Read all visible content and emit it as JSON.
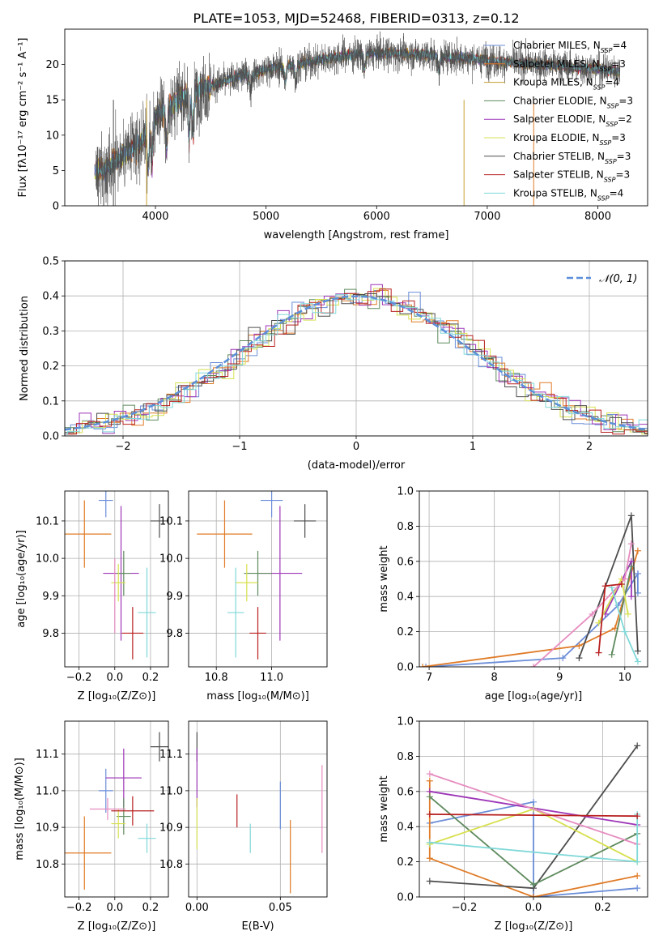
{
  "figure_title": "PLATE=1053, MJD=52468, FIBERID=0313, z=0.12",
  "colors": {
    "Chabrier MILES": "#6a8dd8",
    "Salpeter MILES": "#e07b27",
    "Kroupa MILES": "#c8a033",
    "Chabrier ELODIE": "#5e8a5e",
    "Salpeter ELODIE": "#9e36b8",
    "Kroupa ELODIE": "#d8e050",
    "Chabrier STELIB": "#4d4d4d",
    "Salpeter STELIB": "#b81f1f",
    "Kroupa STELIB": "#80d8d8",
    "extra_pink": "#e68cc0"
  },
  "chart_data": [
    {
      "id": "spectrum",
      "type": "line",
      "title": "PLATE=1053, MJD=52468, FIBERID=0313, z=0.12",
      "xlabel": "wavelength [Angstrom, rest frame]",
      "ylabel": "Flux [fλ10⁻¹⁷ erg cm⁻² s⁻¹ A⁻¹]",
      "xlim": [
        3180,
        8450
      ],
      "ylim": [
        0,
        25
      ],
      "xticks": [
        4000,
        5000,
        6000,
        7000,
        8000
      ],
      "yticks": [
        0,
        5,
        10,
        15,
        20
      ],
      "legend_position": "upper-right",
      "continuum": {
        "x": [
          3450,
          3550,
          3650,
          3750,
          3850,
          3950,
          4050,
          4200,
          4400,
          4600,
          4800,
          5000,
          5200,
          5400,
          5600,
          5800,
          6000,
          6200,
          6400,
          6600,
          6800,
          7000,
          7200,
          7400,
          7600,
          7800,
          8000,
          8200
        ],
        "y": [
          5.0,
          5.3,
          6.5,
          7.5,
          8.5,
          11.5,
          13.5,
          15.0,
          16.5,
          17.5,
          18.5,
          19.3,
          19.8,
          20.4,
          21.0,
          21.4,
          21.6,
          21.6,
          21.4,
          21.1,
          20.9,
          20.6,
          20.3,
          20.1,
          19.9,
          19.6,
          19.4,
          19.1
        ]
      },
      "series": [
        {
          "name": "Chabrier MILES",
          "nssp": "4"
        },
        {
          "name": "Salpeter MILES",
          "nssp": "3"
        },
        {
          "name": "Kroupa MILES",
          "nssp": "4"
        },
        {
          "name": "Chabrier ELODIE",
          "nssp": "3"
        },
        {
          "name": "Salpeter ELODIE",
          "nssp": "2"
        },
        {
          "name": "Kroupa ELODIE",
          "nssp": "3"
        },
        {
          "name": "Chabrier STELIB",
          "nssp": "3"
        },
        {
          "name": "Salpeter STELIB",
          "nssp": "3"
        },
        {
          "name": "Kroupa STELIB",
          "nssp": "4"
        }
      ]
    },
    {
      "id": "residual-histogram",
      "type": "line",
      "xlabel": "(data-model)/error",
      "ylabel": "Normed distribution",
      "xlim": [
        -2.5,
        2.5
      ],
      "ylim": [
        0,
        0.5
      ],
      "xticks": [
        -2,
        -1,
        0,
        1,
        2
      ],
      "yticks": [
        0.0,
        0.1,
        0.2,
        0.3,
        0.4,
        0.5
      ],
      "grid": true,
      "legend": "𝒩(0, 1)",
      "legend_position": "upper-right",
      "bin_width": 0.1,
      "series_note": "step histograms, one per model, colors as in the spectrum legend; dashed curve is a unit normal"
    },
    {
      "id": "age-vs-Z",
      "type": "scatter",
      "xlabel": "Z [log₁₀(Z/Z⊙)]",
      "ylabel": "age  [log₁₀(age/yr)]",
      "xlim": [
        -0.28,
        0.3
      ],
      "ylim": [
        9.71,
        10.18
      ],
      "xticks": [
        -0.2,
        0.0,
        0.2
      ],
      "yticks": [
        9.8,
        9.9,
        10.0,
        10.1
      ],
      "grid": true,
      "points": [
        {
          "model": "Chabrier MILES",
          "x": -0.05,
          "xerr": 0.04,
          "y": 10.155,
          "yerr": 0.045
        },
        {
          "model": "Salpeter MILES",
          "x": -0.17,
          "xerr": 0.15,
          "y": 10.065,
          "yerr": 0.09
        },
        {
          "model": "Chabrier STELIB",
          "x": 0.25,
          "xerr": 0.05,
          "y": 10.1,
          "yerr": 0.045
        },
        {
          "model": "Salpeter ELODIE",
          "x": 0.035,
          "xerr": 0.1,
          "y": 9.96,
          "yerr": 0.18
        },
        {
          "model": "Chabrier ELODIE",
          "x": 0.05,
          "xerr": 0.04,
          "y": 9.96,
          "yerr": 0.06
        },
        {
          "model": "Kroupa ELODIE",
          "x": 0.02,
          "xerr": 0.04,
          "y": 9.935,
          "yerr": 0.05
        },
        {
          "model": "extra_pink",
          "x": 0.0,
          "xerr": 0.005,
          "y": 9.9,
          "yerr": 0.1
        },
        {
          "model": "Kroupa STELIB",
          "x": 0.18,
          "xerr": 0.05,
          "y": 9.855,
          "yerr": 0.12
        },
        {
          "model": "Salpeter STELIB",
          "x": 0.1,
          "xerr": 0.06,
          "y": 9.8,
          "yerr": 0.07
        }
      ]
    },
    {
      "id": "age-vs-mass",
      "type": "scatter",
      "xlabel": "mass [log₁₀(M/M⊙)]",
      "ylabel": "",
      "xlim": [
        10.7,
        11.2
      ],
      "ylim": [
        9.71,
        10.18
      ],
      "xticks": [
        10.8,
        11.0
      ],
      "yticks": [
        9.8,
        9.9,
        10.0,
        10.1
      ],
      "grid": true,
      "points": [
        {
          "model": "Chabrier MILES",
          "x": 11.0,
          "xerr": 0.04,
          "y": 10.155,
          "yerr": 0.045
        },
        {
          "model": "Salpeter MILES",
          "x": 10.83,
          "xerr": 0.1,
          "y": 10.065,
          "yerr": 0.09
        },
        {
          "model": "Chabrier STELIB",
          "x": 11.12,
          "xerr": 0.04,
          "y": 10.1,
          "yerr": 0.045
        },
        {
          "model": "Salpeter ELODIE",
          "x": 11.03,
          "xerr": 0.08,
          "y": 9.96,
          "yerr": 0.18
        },
        {
          "model": "Chabrier ELODIE",
          "x": 10.95,
          "xerr": 0.05,
          "y": 9.96,
          "yerr": 0.06
        },
        {
          "model": "Kroupa ELODIE",
          "x": 10.91,
          "xerr": 0.04,
          "y": 9.935,
          "yerr": 0.05
        },
        {
          "model": "Kroupa STELIB",
          "x": 10.87,
          "xerr": 0.03,
          "y": 9.855,
          "yerr": 0.12
        },
        {
          "model": "Salpeter STELIB",
          "x": 10.95,
          "xerr": 0.03,
          "y": 9.8,
          "yerr": 0.07
        }
      ]
    },
    {
      "id": "mass-weight-vs-age",
      "type": "line",
      "xlabel": "age  [log₁₀(age/yr)]",
      "ylabel": "mass weight",
      "xlim": [
        6.85,
        10.35
      ],
      "ylim": [
        0.0,
        1.0
      ],
      "xticks": [
        7,
        8,
        9,
        10
      ],
      "yticks": [
        0.0,
        0.2,
        0.4,
        0.6,
        0.8,
        1.0
      ],
      "grid": true,
      "series": [
        {
          "model": "Chabrier MILES",
          "x": [
            6.95,
            9.05,
            9.9,
            10.2,
            10.2
          ],
          "y": [
            0.0,
            0.05,
            0.35,
            0.53,
            0.42
          ]
        },
        {
          "model": "Salpeter MILES",
          "x": [
            6.9,
            9.3,
            9.85,
            10.2
          ],
          "y": [
            0.0,
            0.12,
            0.22,
            0.66
          ]
        },
        {
          "model": "Chabrier STELIB",
          "x": [
            9.3,
            10.1,
            10.2
          ],
          "y": [
            0.05,
            0.86,
            0.09
          ]
        },
        {
          "model": "Salpeter ELODIE",
          "x": [
            9.7,
            10.1,
            10.1
          ],
          "y": [
            0.3,
            0.6,
            0.4
          ]
        },
        {
          "model": "Chabrier ELODIE",
          "x": [
            9.8,
            10.1
          ],
          "y": [
            0.07,
            0.57
          ]
        },
        {
          "model": "Kroupa ELODIE",
          "x": [
            9.6,
            9.95,
            10.05
          ],
          "y": [
            0.25,
            0.5,
            0.3
          ]
        },
        {
          "model": "extra_pink",
          "x": [
            8.6,
            9.5,
            10.0,
            10.1
          ],
          "y": [
            0.0,
            0.3,
            0.5,
            0.7
          ]
        },
        {
          "model": "Kroupa STELIB",
          "x": [
            9.8,
            10.0,
            10.2
          ],
          "y": [
            0.45,
            0.2,
            0.03
          ]
        },
        {
          "model": "Salpeter STELIB",
          "x": [
            9.6,
            9.7,
            9.95
          ],
          "y": [
            0.08,
            0.46,
            0.47
          ]
        }
      ]
    },
    {
      "id": "mass-vs-Z",
      "type": "scatter",
      "xlabel": "Z [log₁₀(Z/Z⊙)]",
      "ylabel": "mass [log₁₀(M/M⊙)]",
      "xlim": [
        -0.28,
        0.3
      ],
      "ylim": [
        10.71,
        11.19
      ],
      "xticks": [
        -0.2,
        0.0,
        0.2
      ],
      "yticks": [
        10.8,
        10.9,
        11.0,
        11.1
      ],
      "grid": true,
      "points": [
        {
          "model": "Chabrier MILES",
          "x": -0.05,
          "xerr": 0.04,
          "y": 11.0,
          "yerr": 0.06
        },
        {
          "model": "Salpeter MILES",
          "x": -0.17,
          "xerr": 0.15,
          "y": 10.83,
          "yerr": 0.1
        },
        {
          "model": "Chabrier STELIB",
          "x": 0.25,
          "xerr": 0.05,
          "y": 11.12,
          "yerr": 0.04
        },
        {
          "model": "Salpeter ELODIE",
          "x": 0.05,
          "xerr": 0.1,
          "y": 11.035,
          "yerr": 0.08
        },
        {
          "model": "Chabrier ELODIE",
          "x": 0.05,
          "xerr": 0.04,
          "y": 10.93,
          "yerr": 0.05
        },
        {
          "model": "Kroupa ELODIE",
          "x": 0.02,
          "xerr": 0.04,
          "y": 10.91,
          "yerr": 0.04
        },
        {
          "model": "extra_pink",
          "x": -0.04,
          "xerr": 0.1,
          "y": 10.95,
          "yerr": 0.03
        },
        {
          "model": "Kroupa STELIB",
          "x": 0.18,
          "xerr": 0.05,
          "y": 10.87,
          "yerr": 0.04
        },
        {
          "model": "Salpeter STELIB",
          "x": 0.1,
          "xerr": 0.12,
          "y": 10.945,
          "yerr": 0.04
        }
      ]
    },
    {
      "id": "mass-vs-ebv",
      "type": "scatter",
      "xlabel": "E(B-V)",
      "ylabel": "",
      "xlim": [
        -0.005,
        0.078
      ],
      "ylim": [
        10.71,
        11.19
      ],
      "xticks": [
        0.0,
        0.05
      ],
      "yticks": [
        10.8,
        10.9,
        11.0,
        11.1
      ],
      "grid": true,
      "points": [
        {
          "model": "Chabrier STELIB",
          "x": 0.0,
          "y": 11.12,
          "yerr": 0.04
        },
        {
          "model": "Salpeter ELODIE",
          "x": 0.0,
          "y": 11.035,
          "yerr": 0.08
        },
        {
          "model": "Kroupa ELODIE",
          "x": 0.0,
          "y": 10.91,
          "yerr": 0.07
        },
        {
          "model": "Salpeter STELIB",
          "x": 0.024,
          "y": 10.945,
          "yerr": 0.045
        },
        {
          "model": "Kroupa STELIB",
          "x": 0.032,
          "y": 10.87,
          "yerr": 0.04
        },
        {
          "model": "Chabrier MILES",
          "x": 0.05,
          "y": 10.96,
          "yerr": 0.065
        },
        {
          "model": "Salpeter MILES",
          "x": 0.056,
          "y": 10.82,
          "yerr": 0.1
        },
        {
          "model": "extra_pink",
          "x": 0.075,
          "y": 10.95,
          "yerr": 0.12
        }
      ]
    },
    {
      "id": "mass-weight-vs-Z",
      "type": "line",
      "xlabel": "Z [log₁₀(Z/Z⊙)]",
      "ylabel": "mass weight",
      "xlim": [
        -0.33,
        0.33
      ],
      "ylim": [
        0.0,
        1.0
      ],
      "xticks": [
        -0.2,
        0.0,
        0.2
      ],
      "yticks": [
        0.0,
        0.2,
        0.4,
        0.6,
        0.8,
        1.0
      ],
      "grid": true,
      "series": [
        {
          "model": "Chabrier MILES",
          "x": [
            -0.3,
            0.0,
            0.0,
            0.3
          ],
          "y": [
            0.42,
            0.54,
            0.0,
            0.05
          ]
        },
        {
          "model": "Salpeter MILES",
          "x": [
            -0.3,
            -0.3,
            0.0,
            0.3
          ],
          "y": [
            0.66,
            0.22,
            0.0,
            0.12
          ]
        },
        {
          "model": "Chabrier STELIB",
          "x": [
            -0.3,
            0.0,
            0.3
          ],
          "y": [
            0.09,
            0.05,
            0.86
          ]
        },
        {
          "model": "Salpeter ELODIE",
          "x": [
            -0.3,
            0.3
          ],
          "y": [
            0.6,
            0.41
          ]
        },
        {
          "model": "Chabrier ELODIE",
          "x": [
            -0.3,
            0.0,
            0.3
          ],
          "y": [
            0.57,
            0.07,
            0.36
          ]
        },
        {
          "model": "Kroupa ELODIE",
          "x": [
            -0.3,
            0.0,
            0.3
          ],
          "y": [
            0.3,
            0.5,
            0.2
          ]
        },
        {
          "model": "extra_pink",
          "x": [
            -0.3,
            0.3
          ],
          "y": [
            0.7,
            0.3
          ]
        },
        {
          "model": "Kroupa STELIB",
          "x": [
            -0.3,
            0.3,
            0.3
          ],
          "y": [
            0.31,
            0.2,
            0.47
          ]
        },
        {
          "model": "Salpeter STELIB",
          "x": [
            -0.3,
            0.3
          ],
          "y": [
            0.47,
            0.46
          ]
        }
      ]
    }
  ]
}
